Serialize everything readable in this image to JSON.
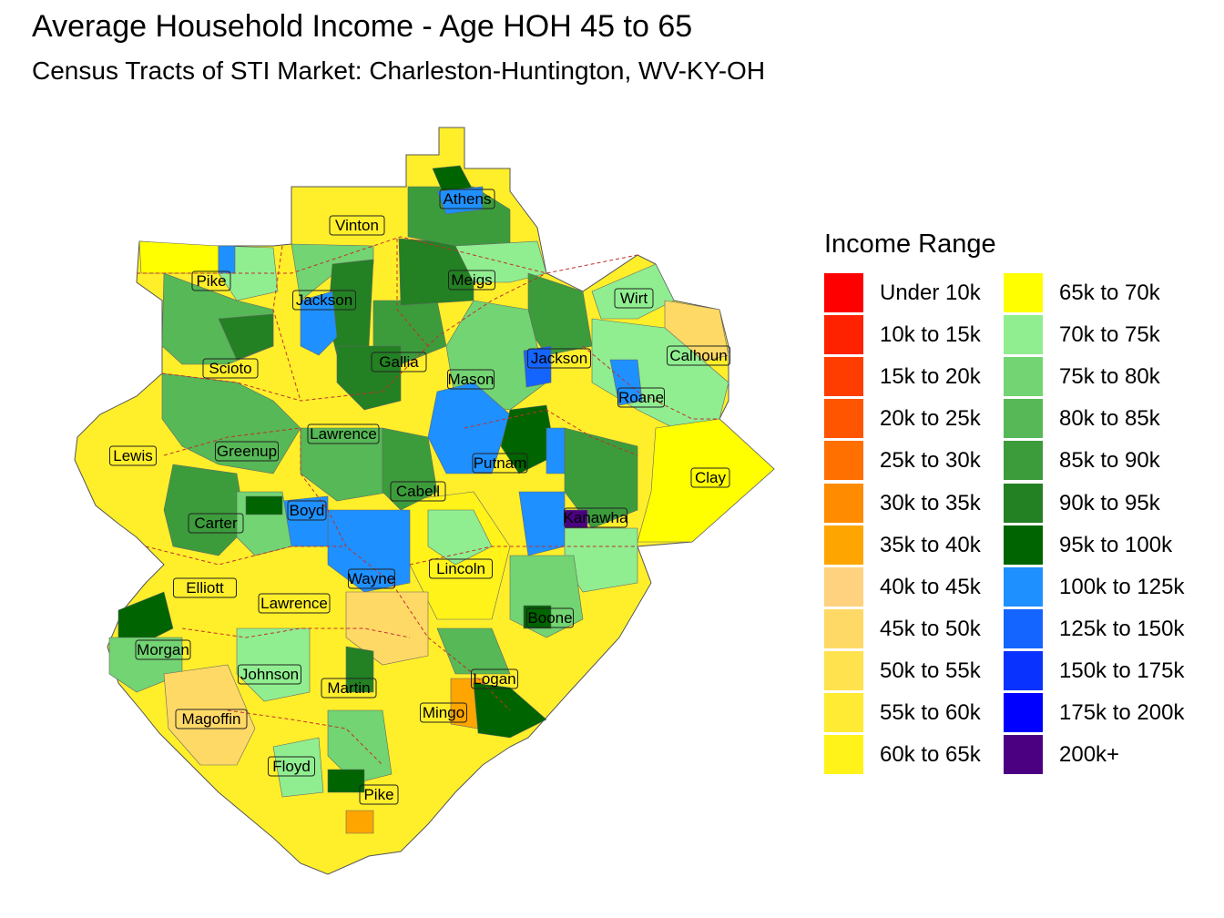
{
  "title": "Average Household Income - Age HOH 45 to 65",
  "subtitle": "Census Tracts of STI Market: Charleston-Huntington, WV-KY-OH",
  "legend": {
    "title": "Income Range",
    "items": [
      {
        "label": "Under 10k",
        "color": "#FF0000"
      },
      {
        "label": "10k to 15k",
        "color": "#FF2200"
      },
      {
        "label": "15k to 20k",
        "color": "#FF3D00"
      },
      {
        "label": "20k to 25k",
        "color": "#FF5500"
      },
      {
        "label": "25k to 30k",
        "color": "#FF7000"
      },
      {
        "label": "30k to 35k",
        "color": "#FF8C00"
      },
      {
        "label": "35k to 40k",
        "color": "#FFA500"
      },
      {
        "label": "40k to 45k",
        "color": "#FFD27F"
      },
      {
        "label": "45k to 50k",
        "color": "#FFD966"
      },
      {
        "label": "50k to 55k",
        "color": "#FFE24D"
      },
      {
        "label": "55k to 60k",
        "color": "#FFEB33"
      },
      {
        "label": "60k to 65k",
        "color": "#FFF31A"
      },
      {
        "label": "65k to 70k",
        "color": "#FFFF00"
      },
      {
        "label": "70k to 75k",
        "color": "#90EE90"
      },
      {
        "label": "75k to 80k",
        "color": "#72D472"
      },
      {
        "label": "80k to 85k",
        "color": "#56B856"
      },
      {
        "label": "85k to 90k",
        "color": "#3C9C3C"
      },
      {
        "label": "90k to 95k",
        "color": "#238023"
      },
      {
        "label": "95k to 100k",
        "color": "#006400"
      },
      {
        "label": "100k to 125k",
        "color": "#1E90FF"
      },
      {
        "label": "125k to 150k",
        "color": "#1464FF"
      },
      {
        "label": "150k to 175k",
        "color": "#0A32FF"
      },
      {
        "label": "175k to 200k",
        "color": "#0000FF"
      },
      {
        "label": "200k+",
        "color": "#4B0082"
      }
    ]
  },
  "counties": [
    {
      "name": "Athens",
      "bin": "85k to 90k"
    },
    {
      "name": "Vinton",
      "bin": "65k to 70k"
    },
    {
      "name": "Meigs",
      "bin": "90k to 95k"
    },
    {
      "name": "Pike",
      "bin": "70k to 75k"
    },
    {
      "name": "Jackson",
      "bin": "90k to 95k"
    },
    {
      "name": "Wirt",
      "bin": "70k to 75k"
    },
    {
      "name": "Gallia",
      "bin": "90k to 95k"
    },
    {
      "name": "Jackson",
      "bin": "85k to 90k"
    },
    {
      "name": "Calhoun",
      "bin": "45k to 50k"
    },
    {
      "name": "Scioto",
      "bin": "65k to 70k"
    },
    {
      "name": "Mason",
      "bin": "85k to 90k"
    },
    {
      "name": "Roane",
      "bin": "70k to 75k"
    },
    {
      "name": "Lawrence",
      "bin": "60k to 65k"
    },
    {
      "name": "Lewis",
      "bin": "65k to 70k"
    },
    {
      "name": "Greenup",
      "bin": "80k to 85k"
    },
    {
      "name": "Putnam",
      "bin": "100k to 125k"
    },
    {
      "name": "Clay",
      "bin": "65k to 70k"
    },
    {
      "name": "Cabell",
      "bin": "75k to 80k"
    },
    {
      "name": "Carter",
      "bin": "80k to 85k"
    },
    {
      "name": "Boyd",
      "bin": "100k to 125k"
    },
    {
      "name": "Kanawha",
      "bin": "80k to 85k"
    },
    {
      "name": "Elliott",
      "bin": "65k to 70k"
    },
    {
      "name": "Wayne",
      "bin": "45k to 50k"
    },
    {
      "name": "Lincoln",
      "bin": "60k to 65k"
    },
    {
      "name": "Lawrence",
      "bin": "60k to 65k"
    },
    {
      "name": "Boone",
      "bin": "75k to 80k"
    },
    {
      "name": "Morgan",
      "bin": "65k to 70k"
    },
    {
      "name": "Johnson",
      "bin": "60k to 65k"
    },
    {
      "name": "Logan",
      "bin": "60k to 65k"
    },
    {
      "name": "Martin",
      "bin": "65k to 70k"
    },
    {
      "name": "Magoffin",
      "bin": "45k to 50k"
    },
    {
      "name": "Mingo",
      "bin": "55k to 60k"
    },
    {
      "name": "Floyd",
      "bin": "60k to 65k"
    },
    {
      "name": "Pike",
      "bin": "55k to 60k"
    }
  ]
}
